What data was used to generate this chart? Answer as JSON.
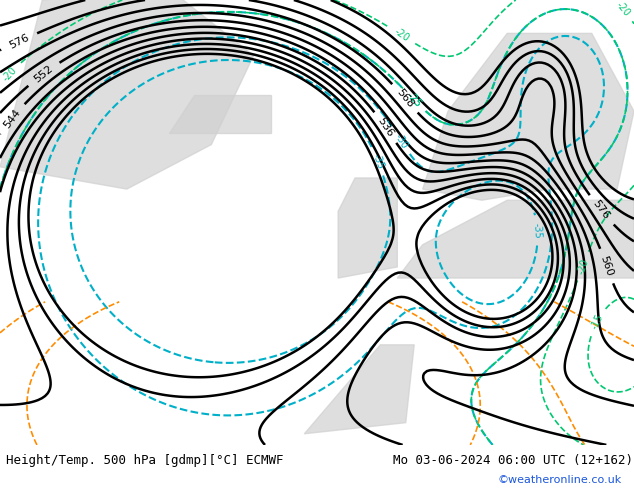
{
  "title_left": "Height/Temp. 500 hPa [gdmp][°C] ECMWF",
  "title_right": "Mo 03-06-2024 06:00 UTC (12+162)",
  "credit": "©weatheronline.co.uk",
  "bg_color": "#c8e8a0",
  "land_color": "#d0d0d0",
  "sea_color": "#c8e8a0",
  "z500_color": "#000000",
  "temp_neg_color": "#00b0c8",
  "temp_neg2_color": "#00c870",
  "slp_color": "#ff8c00",
  "title_fontsize": 9,
  "credit_color": "#1a56db",
  "figsize": [
    6.34,
    4.9
  ],
  "dpi": 100
}
